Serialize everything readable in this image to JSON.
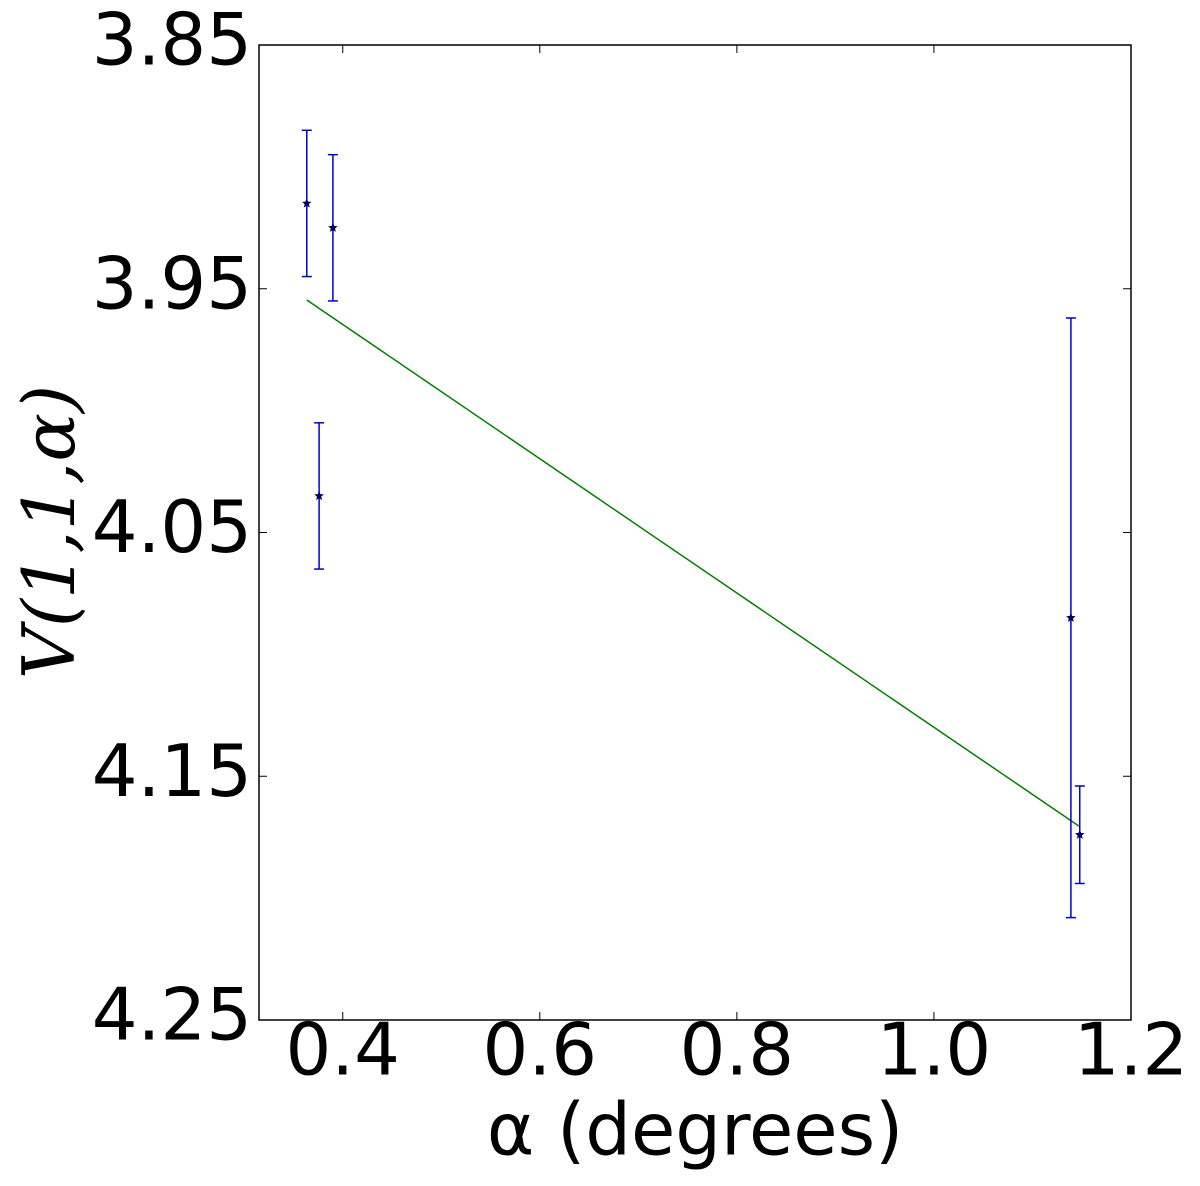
{
  "chart_data": {
    "type": "scatter",
    "xlabel": "α (degrees)",
    "ylabel": "V(1,1,α)",
    "xlim": [
      0.315,
      1.2
    ],
    "ylim": [
      4.25,
      3.85
    ],
    "xticks": [
      0.4,
      0.6,
      0.8,
      {
        "value": 1.0,
        "label": "1.0"
      },
      1.2
    ],
    "yticks": [
      3.85,
      3.95,
      4.05,
      4.15,
      4.25
    ],
    "series": [
      {
        "type": "errorbar",
        "color": "#0000cc",
        "marker_color": "#000066",
        "x": [
          0.3635,
          0.39,
          0.376,
          1.139,
          1.148
        ],
        "values": [
          3.915,
          3.925,
          4.035,
          4.085,
          4.174
        ],
        "errors": [
          0.03,
          0.03,
          0.03,
          0.123,
          0.02
        ]
      },
      {
        "type": "line",
        "color": "#008000",
        "x": [
          0.3635,
          1.147
        ],
        "values": [
          3.9546,
          4.1704
        ]
      }
    ]
  }
}
